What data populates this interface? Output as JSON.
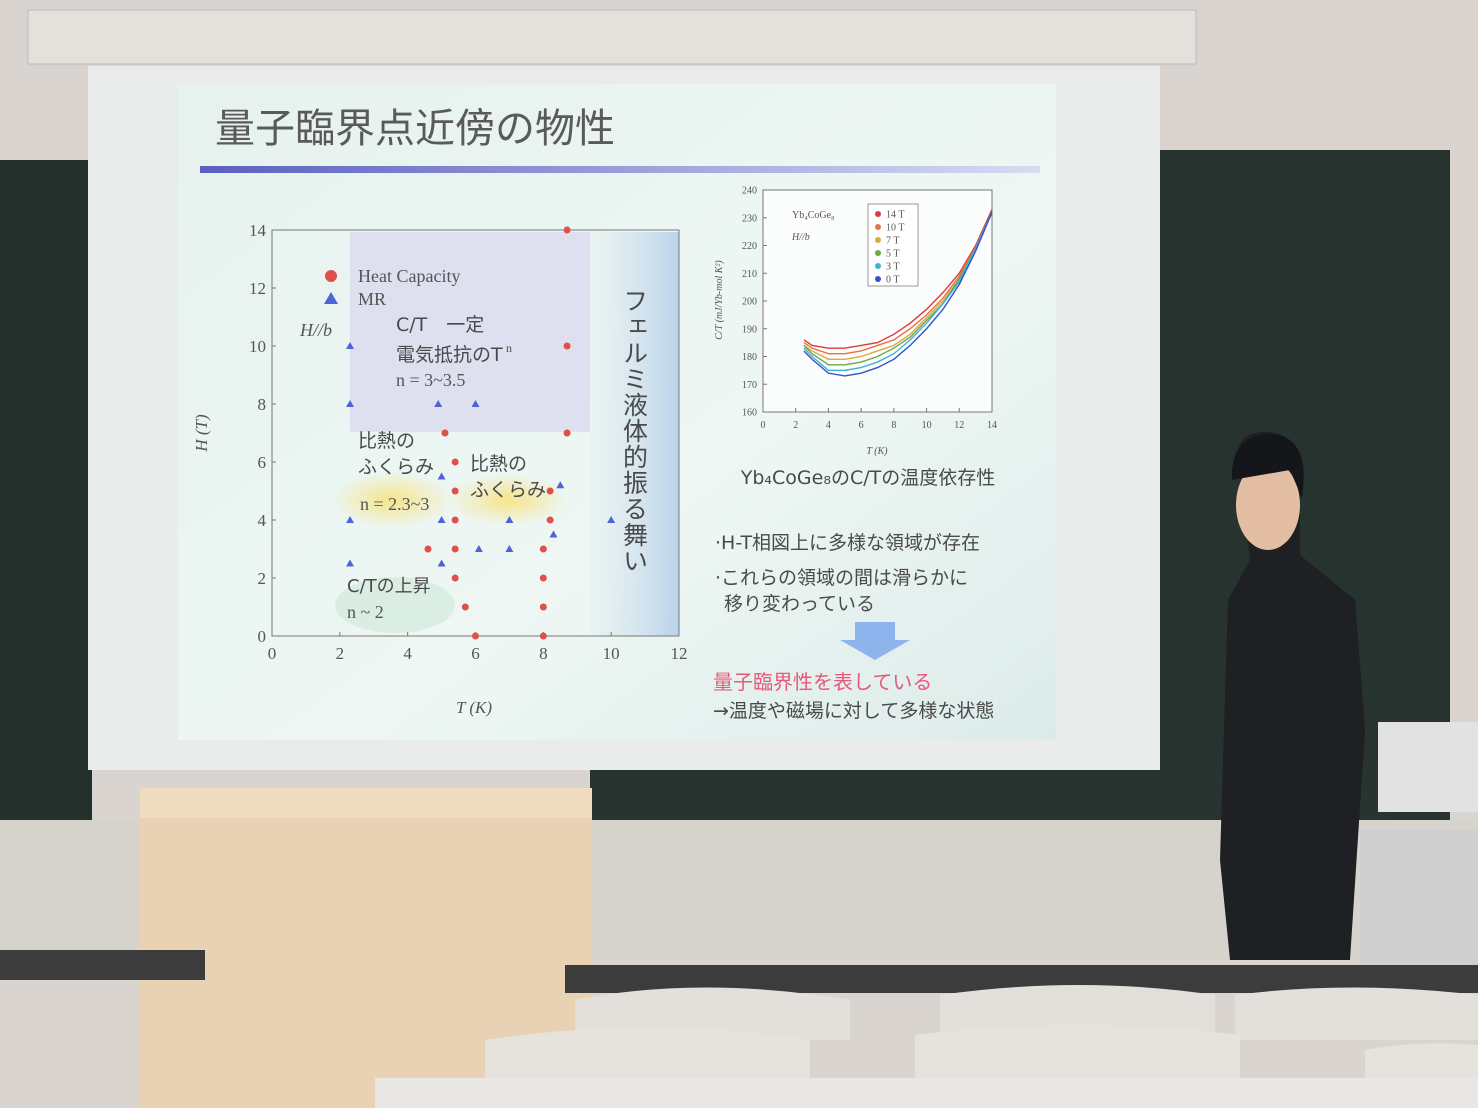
{
  "slide": {
    "title": "量子臨界点近傍の物性",
    "phase_diagram": {
      "type": "scatter",
      "xlabel": "T (K)",
      "ylabel": "H (T)",
      "xlim": [
        0,
        12
      ],
      "ylim": [
        0,
        14
      ],
      "xticks": [
        0,
        2,
        4,
        6,
        8,
        10,
        12
      ],
      "yticks": [
        0,
        2,
        4,
        6,
        8,
        10,
        12,
        14
      ],
      "series": [
        {
          "name": "Heat Capacity",
          "color": "#e0504a",
          "marker": "circle",
          "x": [
            8.7,
            8.7,
            8.7,
            5.1,
            5.4,
            5.4,
            5.4,
            4.6,
            5.4,
            5.4,
            5.7,
            6,
            8,
            8,
            8,
            8,
            8.2,
            8.2
          ],
          "y": [
            14,
            10,
            7,
            7,
            6,
            5,
            4,
            3,
            3,
            2,
            1,
            0,
            0,
            1,
            2,
            3,
            4,
            5
          ]
        },
        {
          "name": "MR",
          "color": "#4f63d8",
          "marker": "triangle",
          "x": [
            2.3,
            2.3,
            4.9,
            6,
            2.3,
            2.3,
            5,
            5,
            5,
            6.1,
            7,
            8.3,
            8.5,
            7,
            10
          ],
          "y": [
            10,
            8,
            8,
            8,
            4,
            2.5,
            5.5,
            4,
            2.5,
            3,
            3,
            3.5,
            5.2,
            4,
            4
          ]
        }
      ],
      "annotations": {
        "field_dir": "H//b",
        "ct_const": "C/T　一定",
        "resist": "電気抵抗のT",
        "resist_exp": "n",
        "n_high": "n = 3~3.5",
        "bump1_a": "比熱の",
        "bump1_b": "ふくらみ",
        "n_mid": "n = 2.3~3",
        "bump2_a": "比熱の",
        "bump2_b": "ふくらみ",
        "ct_rise": "C/Tの上昇",
        "n_low": "n ~ 2",
        "fermi": "フェルミ液体的振る舞い"
      }
    },
    "ct_chart": {
      "type": "line",
      "xlabel": "T (K)",
      "ylabel": "C/T (mJ/Yb-mol K²)",
      "compound": "Yb₄CoGe₈",
      "field_dir": "H//b",
      "xlim": [
        0,
        14
      ],
      "ylim": [
        160,
        240
      ],
      "xticks": [
        0,
        2,
        4,
        6,
        8,
        10,
        12,
        14
      ],
      "yticks": [
        160,
        170,
        180,
        190,
        200,
        210,
        220,
        230,
        240
      ],
      "x": [
        2.5,
        3,
        4,
        5,
        6,
        7,
        8,
        9,
        10,
        11,
        12,
        13,
        14
      ],
      "series": [
        {
          "name": "14 T",
          "color": "#e03a3a",
          "values": [
            186,
            184,
            183,
            183,
            184,
            185,
            188,
            192,
            197,
            203,
            210,
            220,
            233
          ]
        },
        {
          "name": "10 T",
          "color": "#e8704a",
          "values": [
            185,
            183,
            181,
            181,
            182,
            184,
            186,
            190,
            195,
            201,
            209,
            219,
            232
          ]
        },
        {
          "name": "7 T",
          "color": "#e0a838",
          "values": [
            184,
            182,
            179,
            179,
            180,
            182,
            184,
            188,
            194,
            200,
            208,
            219,
            232
          ]
        },
        {
          "name": "5 T",
          "color": "#6ea648",
          "values": [
            184,
            181,
            177,
            177,
            178,
            180,
            183,
            187,
            193,
            199,
            208,
            219,
            232
          ]
        },
        {
          "name": "3 T",
          "color": "#3eb4d4",
          "values": [
            183,
            180,
            175,
            175,
            176,
            178,
            181,
            186,
            192,
            199,
            207,
            219,
            232
          ]
        },
        {
          "name": "0 T",
          "color": "#3352d0",
          "values": [
            182,
            179,
            174,
            173,
            174,
            176,
            179,
            184,
            190,
            197,
            206,
            218,
            232
          ]
        }
      ]
    },
    "caption": "Yb₄CoGe₈のC/Tの温度依存性",
    "bullets": [
      "·H-T相図上に多様な領域が存在",
      "·これらの領域の間は滑らかに",
      "移り変わっている"
    ],
    "conclusion": "量子臨界性を表している",
    "note": "→温度や磁場に対して多様な状態"
  }
}
